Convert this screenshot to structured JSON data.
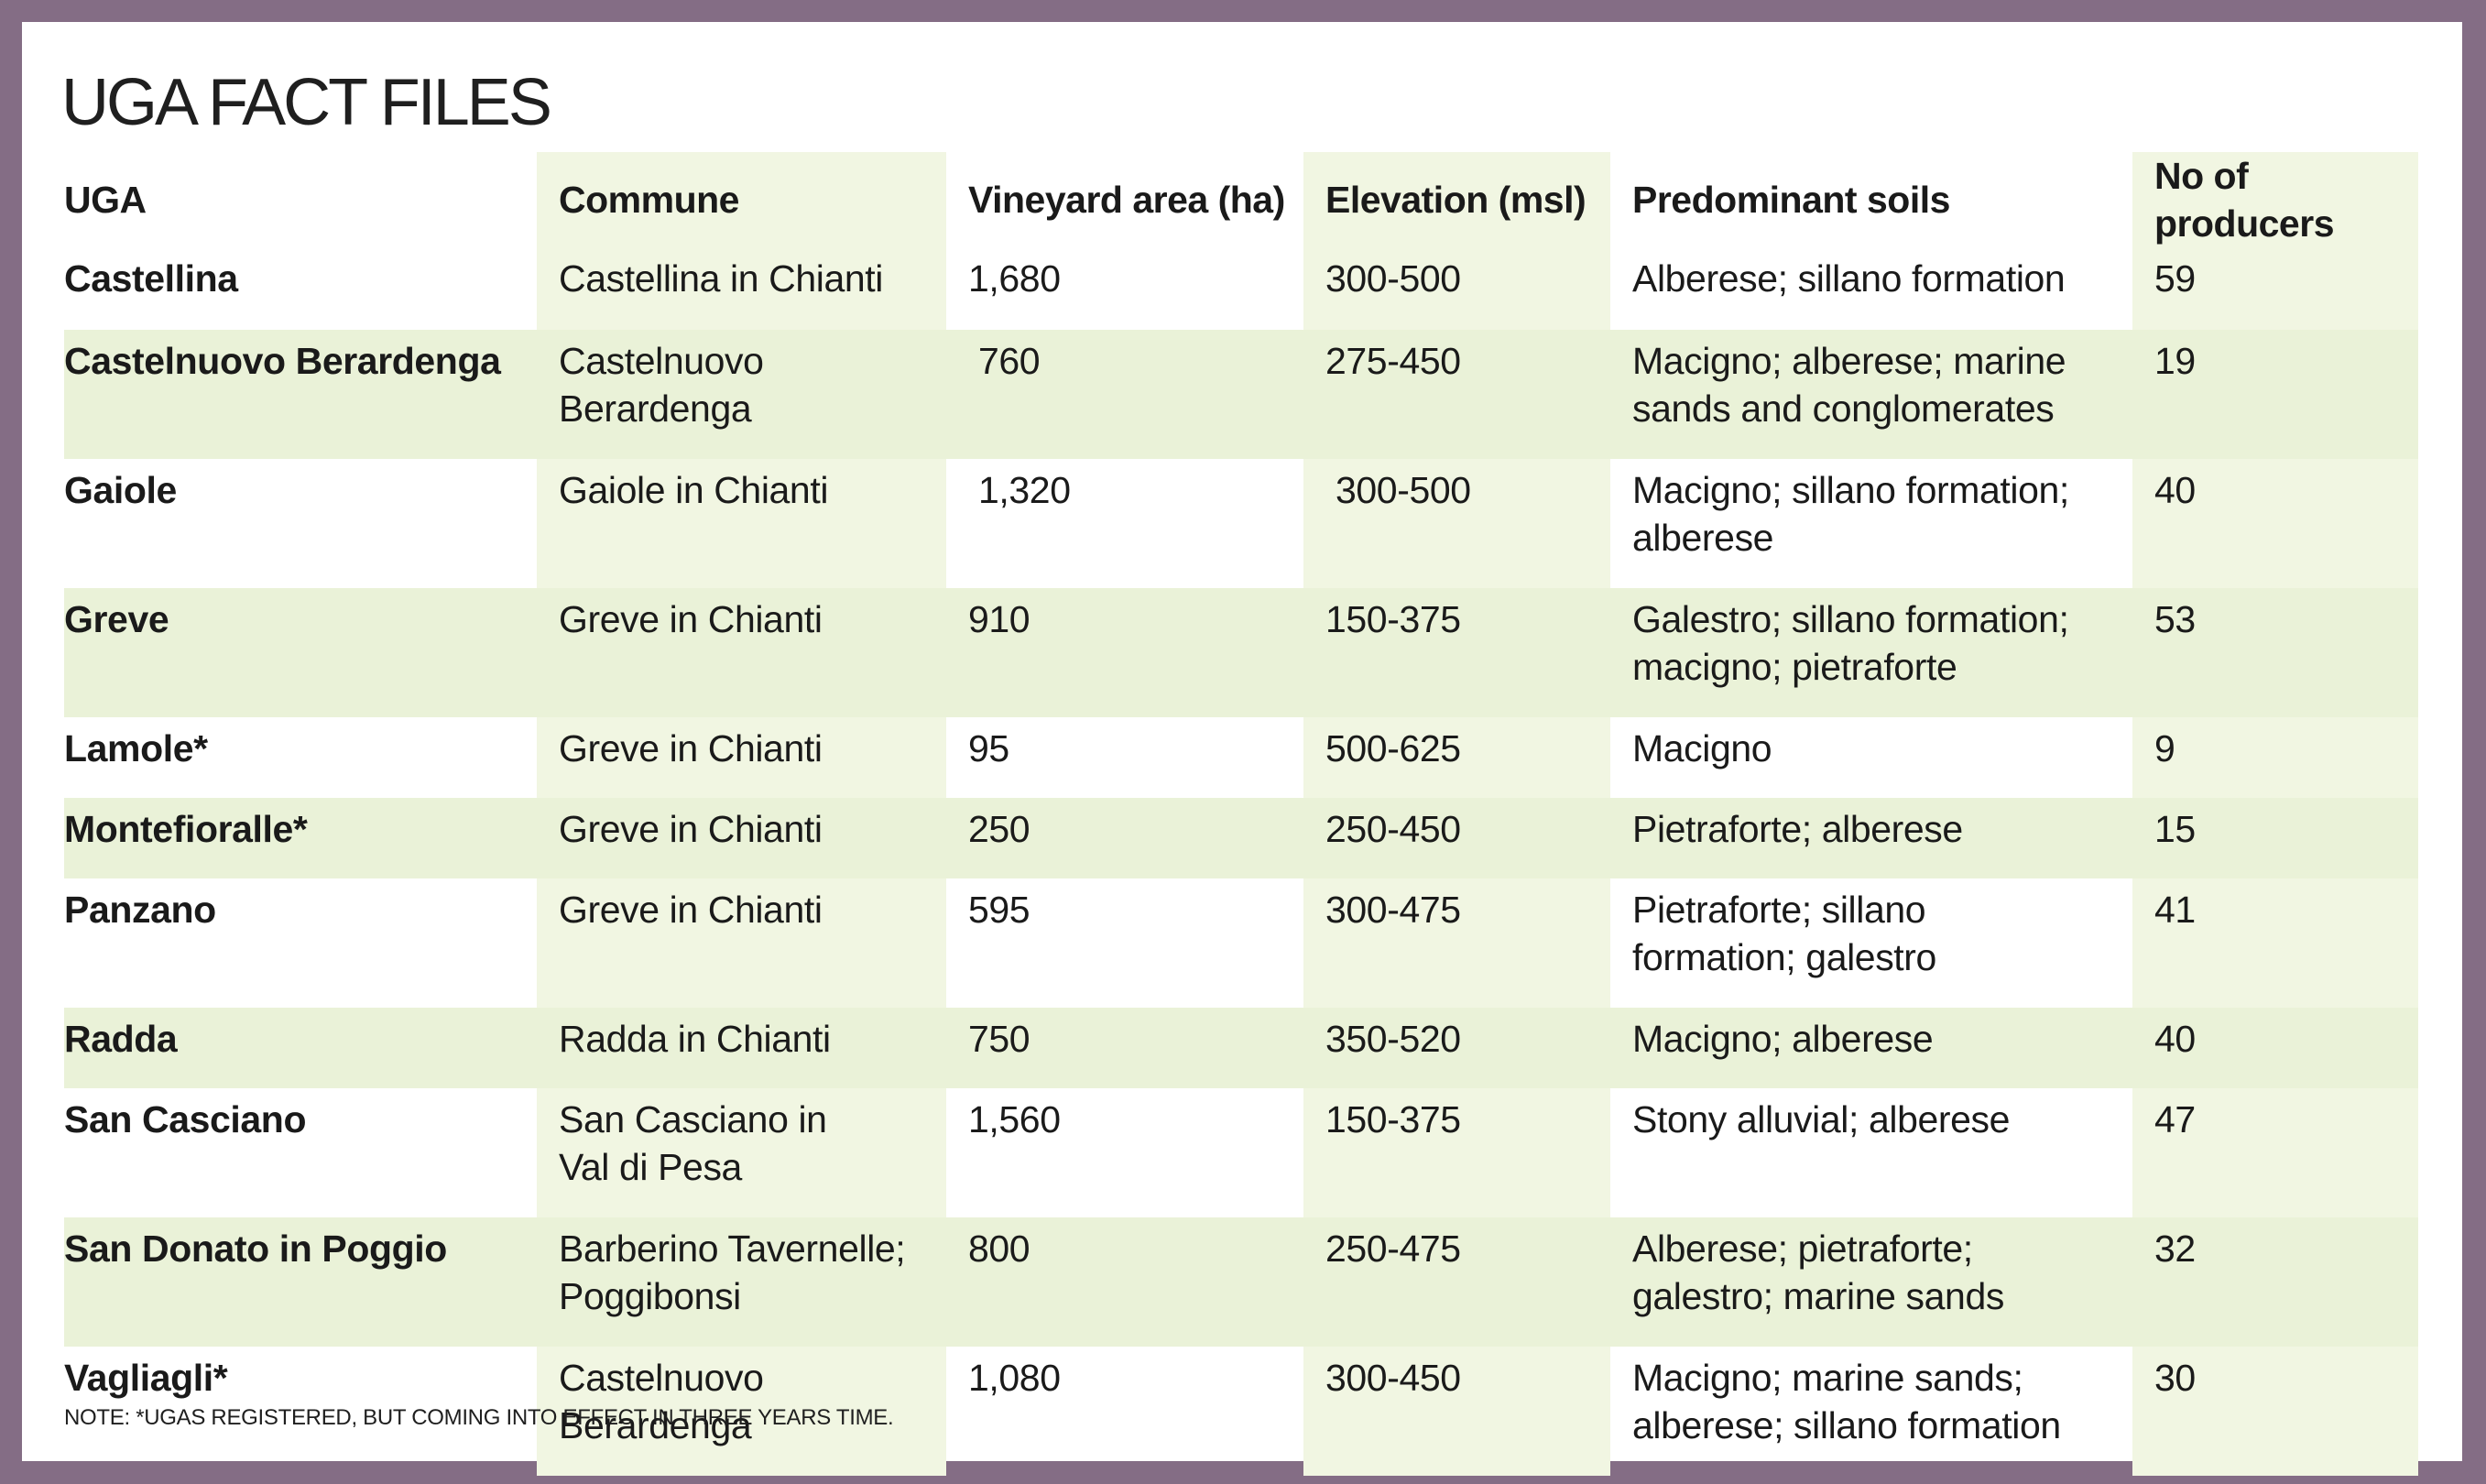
{
  "title": "UGA FACT FILES",
  "columns": [
    "UGA",
    "Commune",
    "Vineyard area (ha)",
    "Elevation (msl)",
    "Predominant soils",
    "No of producers"
  ],
  "rows": [
    {
      "uga": "Castellina",
      "commune": [
        "Castellina in Chianti"
      ],
      "area": "1,680",
      "elevation": "300-500",
      "soils": [
        "Alberese; sillano formation"
      ],
      "producers": "59"
    },
    {
      "uga": "Castelnuovo Berardenga",
      "commune": [
        "Castelnuovo",
        "Berardenga"
      ],
      "area": " 760",
      "elevation": "275-450",
      "soils": [
        "Macigno; alberese; marine",
        "sands and conglomerates"
      ],
      "producers": "19"
    },
    {
      "uga": "Gaiole",
      "commune": [
        "Gaiole in Chianti"
      ],
      "area": " 1,320",
      "elevation": " 300-500",
      "soils": [
        "Macigno; sillano formation;",
        "alberese"
      ],
      "producers": "40"
    },
    {
      "uga": "Greve",
      "commune": [
        "Greve in Chianti"
      ],
      "area": "910",
      "elevation": "150-375",
      "soils": [
        "Galestro; sillano formation;",
        "macigno; pietraforte"
      ],
      "producers": "53"
    },
    {
      "uga": "Lamole*",
      "commune": [
        "Greve in Chianti"
      ],
      "area": "95",
      "elevation": "500-625",
      "soils": [
        "Macigno"
      ],
      "producers": "9"
    },
    {
      "uga": "Montefioralle*",
      "commune": [
        "Greve in Chianti"
      ],
      "area": "250",
      "elevation": "250-450",
      "soils": [
        "Pietraforte; alberese"
      ],
      "producers": "15"
    },
    {
      "uga": "Panzano",
      "commune": [
        "Greve in Chianti"
      ],
      "area": "595",
      "elevation": "300-475",
      "soils": [
        "Pietraforte; sillano",
        "formation; galestro"
      ],
      "producers": "41"
    },
    {
      "uga": "Radda",
      "commune": [
        "Radda in Chianti"
      ],
      "area": "750",
      "elevation": "350-520",
      "soils": [
        "Macigno; alberese"
      ],
      "producers": "40"
    },
    {
      "uga": "San Casciano",
      "commune": [
        "San Casciano in",
        "Val di Pesa"
      ],
      "area": "1,560",
      "elevation": "150-375",
      "soils": [
        "Stony alluvial; alberese"
      ],
      "producers": "47"
    },
    {
      "uga": "San Donato in Poggio",
      "commune": [
        "Barberino Tavernelle;",
        "Poggibonsi"
      ],
      "area": "800",
      "elevation": "250-475",
      "soils": [
        "Alberese; pietraforte;",
        "galestro; marine sands"
      ],
      "producers": "32"
    },
    {
      "uga": "Vagliagli*",
      "commune": [
        "Castelnuovo",
        "Berardenga"
      ],
      "area": "1,080",
      "elevation": "300-450",
      "soils": [
        "Macigno; marine sands;",
        "alberese; sillano formation"
      ],
      "producers": "30"
    }
  ],
  "note": "NOTE: *UGAS REGISTERED, BUT COMING INTO EFFECT IN THREE YEARS TIME.",
  "colors": {
    "border": "#846d85",
    "shade_light": "#f1f6e2",
    "shade_row": "#eaf2d8"
  }
}
